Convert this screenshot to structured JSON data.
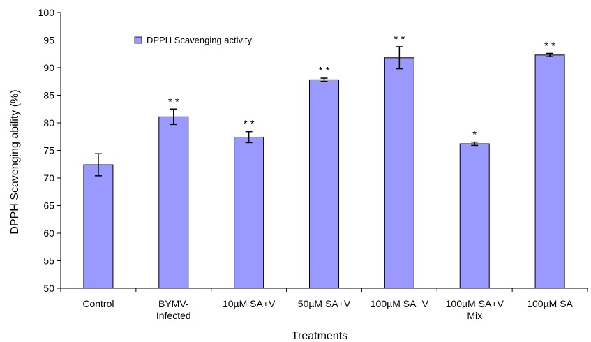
{
  "chart_data": {
    "type": "bar",
    "title": "",
    "xlabel": "Treatments",
    "ylabel": "DPPH Scavenging ability (%)",
    "ylim": [
      50,
      100
    ],
    "yticks": [
      50,
      55,
      60,
      65,
      70,
      75,
      80,
      85,
      90,
      95,
      100
    ],
    "categories": [
      [
        "Control"
      ],
      [
        "BYMV-",
        "Infected"
      ],
      [
        "10µM SA+V"
      ],
      [
        "50µM SA+V"
      ],
      [
        "100µM SA+V"
      ],
      [
        "100µM SA+V",
        "Mix"
      ],
      [
        "100µM SA"
      ]
    ],
    "series": [
      {
        "name": "DPPH Scavenging activity",
        "values": [
          72.4,
          81.1,
          77.4,
          87.8,
          91.8,
          76.2,
          92.3
        ],
        "errors": [
          2.0,
          1.4,
          1.0,
          0.3,
          2.0,
          0.3,
          0.3
        ],
        "significance": [
          "",
          "* *",
          "* *",
          "* *",
          "* *",
          "*",
          "* *"
        ]
      }
    ],
    "legend_position": "top-left",
    "grid": false,
    "colors": {
      "bar_fill": "#9999ff",
      "bar_stroke": "#000000"
    }
  }
}
